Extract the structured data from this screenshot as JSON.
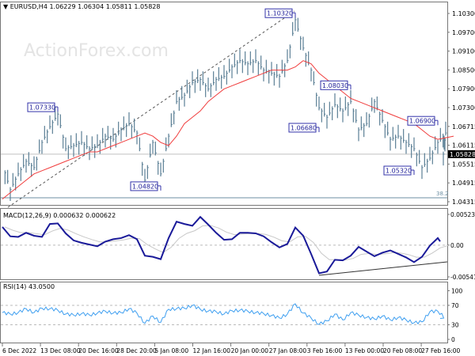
{
  "header": {
    "symbol": "EURUSD,H4",
    "open": "1.06229",
    "high": "1.06304",
    "low": "1.05811",
    "close": "1.05828"
  },
  "watermark": "ActionForex.com",
  "colors": {
    "price": "#5b7f95",
    "ma": "#f03c3c",
    "macd": "#1a1a99",
    "signal": "#c8c8c8",
    "rsi": "#3f9ff0",
    "label_border": "#3333aa"
  },
  "chart_data": [
    {
      "type": "line",
      "panel": "price",
      "price_axis_ticks": [
        "1.10300",
        "1.09700",
        "1.09100",
        "1.08500",
        "1.07900",
        "1.07300",
        "1.06715",
        "1.06115",
        "1.05515",
        "1.04915",
        "1.04315"
      ],
      "current_price": "1.05828",
      "x_tick_labels": [
        "6 Dec 2022",
        "13 Dec 08:00",
        "20 Dec 16:00",
        "28 Dec 20:00",
        "5 Jan 08:00",
        "12 Jan 16:00",
        "20 Jan 00:00",
        "27 Jan 08:00",
        "3 Feb 16:00",
        "13 Feb 00:00",
        "20 Feb 08:00",
        "27 Feb 16:00"
      ],
      "series": [
        {
          "values": [
            1.055,
            1.047,
            1.052,
            1.056,
            1.054,
            1.062,
            1.067,
            1.071,
            1.06,
            1.061,
            1.062,
            1.06,
            1.061,
            1.064,
            1.063,
            1.066,
            1.068,
            1.065,
            1.05,
            1.062,
            1.052,
            1.064,
            1.075,
            1.077,
            1.081,
            1.082,
            1.079,
            1.082,
            1.083,
            1.086,
            1.088,
            1.087,
            1.088,
            1.085,
            1.084,
            1.083,
            1.088,
            1.101,
            1.092,
            1.085,
            1.073,
            1.07,
            1.074,
            1.072,
            1.075,
            1.066,
            1.068,
            1.075,
            1.069,
            1.063,
            1.064,
            1.062,
            1.06,
            1.054,
            1.057,
            1.062,
            1.065,
            1.05828
          ]
        },
        {
          "values": [
            1.044,
            1.046,
            1.048,
            1.05,
            1.052,
            1.053,
            1.054,
            1.055,
            1.056,
            1.057,
            1.058,
            1.059,
            1.059,
            1.06,
            1.061,
            1.062,
            1.063,
            1.064,
            1.065,
            1.064,
            1.062,
            1.061,
            1.064,
            1.068,
            1.07,
            1.072,
            1.075,
            1.077,
            1.079,
            1.08,
            1.081,
            1.082,
            1.083,
            1.084,
            1.085,
            1.085,
            1.085,
            1.086,
            1.088,
            1.087,
            1.084,
            1.082,
            1.08,
            1.078,
            1.076,
            1.075,
            1.074,
            1.073,
            1.072,
            1.071,
            1.07,
            1.069,
            1.068,
            1.066,
            1.064,
            1.063,
            1.0635,
            1.064
          ]
        }
      ],
      "annotations": [
        {
          "text": "1.07330",
          "index": 7,
          "value": 1.0733,
          "side": "left"
        },
        {
          "text": "1.04820",
          "index": 20,
          "value": 1.0482,
          "side": "left"
        },
        {
          "text": "1.10320",
          "index": 37,
          "value": 1.1032,
          "side": "left"
        },
        {
          "text": "1.06680",
          "index": 40,
          "value": 1.0668,
          "side": "left"
        },
        {
          "text": "1.08030",
          "index": 44,
          "value": 1.0803,
          "side": "left"
        },
        {
          "text": "1.06900",
          "index": 55,
          "value": 1.069,
          "side": "left"
        },
        {
          "text": "1.05320",
          "index": 52,
          "value": 1.0532,
          "side": "left"
        }
      ],
      "fib_label": "38.2"
    },
    {
      "type": "line",
      "panel": "macd",
      "title": "MACD(12,26,9) 0.000632 0.000622",
      "axis_ticks": [
        "0.005236",
        "0.00",
        "-0.005416"
      ],
      "ylim": [
        -0.005416,
        0.005236
      ],
      "series": [
        {
          "values": [
            0.0031,
            0.0015,
            0.0014,
            0.0021,
            0.0016,
            0.0014,
            0.0036,
            0.0037,
            0.002,
            0.0008,
            0.0004,
            0.0001,
            -0.0002,
            0.0006,
            0.001,
            0.0012,
            0.0017,
            0.001,
            -0.0018,
            -0.002,
            -0.0024,
            0.0012,
            0.004,
            0.0036,
            0.0033,
            0.0048,
            0.0035,
            0.0021,
            0.0009,
            0.001,
            0.0021,
            0.0021,
            0.002,
            0.0015,
            0.0005,
            -0.0004,
            0.0002,
            0.003,
            0.0016,
            -0.0015,
            -0.0048,
            -0.0045,
            -0.0025,
            -0.0026,
            -0.0018,
            -0.0003,
            -0.0011,
            -0.0019,
            -0.0013,
            -0.0009,
            -0.0015,
            -0.0021,
            -0.0029,
            -0.002,
            -0.0001,
            0.0012,
            0.000632
          ]
        }
      ]
    },
    {
      "type": "line",
      "panel": "rsi",
      "title": "RSI(14) 43.0500",
      "axis_ticks": [
        "100",
        "70",
        "30",
        "0"
      ],
      "ylim": [
        0,
        100
      ],
      "series": [
        {
          "values": [
            55,
            52,
            55,
            63,
            55,
            64,
            63,
            60,
            52,
            50,
            53,
            50,
            54,
            58,
            54,
            55,
            63,
            54,
            33,
            48,
            35,
            62,
            63,
            64,
            70,
            62,
            58,
            57,
            52,
            59,
            60,
            58,
            55,
            53,
            49,
            44,
            52,
            73,
            54,
            44,
            31,
            38,
            52,
            40,
            55,
            50,
            45,
            42,
            48,
            40,
            45,
            40,
            34,
            36,
            57,
            58,
            43.05
          ]
        }
      ]
    }
  ]
}
